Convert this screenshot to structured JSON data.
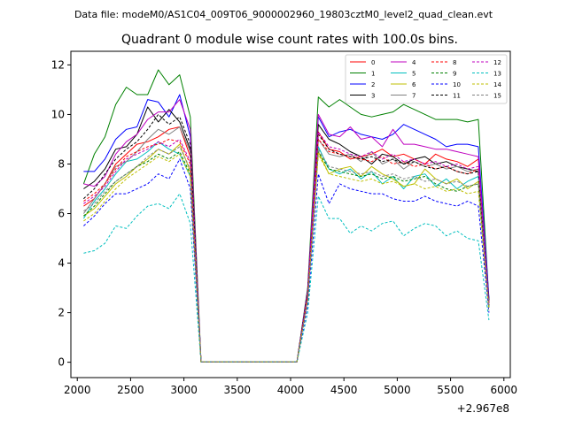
{
  "header": {
    "data_file_caption": "Data file: modeM0/AS1C04_009T06_9000002960_19803cztM0_level2_quad_clean.evt"
  },
  "chart_data": {
    "type": "line",
    "title": "Quadrant 0 module wise count rates with 100.0s bins.",
    "xlabel": "",
    "ylabel": "",
    "x_offset_label": "+2.967e8",
    "xlim": [
      1940,
      6060
    ],
    "ylim": [
      -0.62,
      12.55
    ],
    "x_ticks": [
      2000,
      2500,
      3000,
      3500,
      4000,
      4500,
      5000,
      5500,
      6000
    ],
    "y_ticks": [
      0,
      2,
      4,
      6,
      8,
      10,
      12
    ],
    "legend_position": "top-right",
    "x": [
      2060,
      2160,
      2260,
      2360,
      2460,
      2560,
      2660,
      2760,
      2860,
      2960,
      3060,
      3160,
      3260,
      3360,
      3460,
      3560,
      3660,
      3760,
      3860,
      3960,
      4060,
      4160,
      4260,
      4360,
      4460,
      4560,
      4660,
      4760,
      4860,
      4960,
      5060,
      5160,
      5260,
      5360,
      5460,
      5560,
      5660,
      5760,
      5860
    ],
    "series": [
      {
        "name": "0",
        "color": "#ff0000",
        "dash": "solid",
        "values": [
          6.3,
          6.6,
          7.2,
          8.0,
          8.4,
          8.8,
          8.9,
          9.1,
          9.4,
          9.5,
          8.3,
          0.02,
          0.02,
          0.02,
          0.02,
          0.02,
          0.02,
          0.02,
          0.02,
          0.02,
          0.02,
          2.8,
          9.3,
          8.6,
          8.5,
          8.2,
          8.3,
          8.4,
          8.6,
          8.3,
          8.4,
          8.2,
          8.0,
          8.4,
          8.2,
          8.1,
          7.9,
          8.2,
          2.4
        ]
      },
      {
        "name": "1",
        "color": "#008000",
        "dash": "solid",
        "values": [
          7.2,
          8.4,
          9.1,
          10.4,
          11.1,
          10.8,
          10.8,
          11.8,
          11.2,
          11.6,
          9.9,
          0.02,
          0.02,
          0.02,
          0.02,
          0.02,
          0.02,
          0.02,
          0.02,
          0.02,
          0.02,
          3.0,
          10.7,
          10.3,
          10.6,
          10.3,
          10.0,
          9.9,
          10.0,
          10.1,
          10.4,
          10.2,
          10.0,
          9.8,
          9.8,
          9.8,
          9.7,
          9.8,
          2.5
        ]
      },
      {
        "name": "2",
        "color": "#0000ff",
        "dash": "solid",
        "values": [
          7.7,
          7.7,
          8.2,
          9.0,
          9.4,
          9.5,
          10.6,
          10.5,
          9.9,
          10.8,
          9.1,
          0.02,
          0.02,
          0.02,
          0.02,
          0.02,
          0.02,
          0.02,
          0.02,
          0.02,
          0.02,
          2.9,
          9.9,
          9.1,
          9.3,
          9.4,
          9.2,
          9.1,
          9.0,
          9.2,
          9.6,
          9.4,
          9.2,
          9.0,
          8.7,
          8.8,
          8.8,
          8.7,
          2.6
        ]
      },
      {
        "name": "3",
        "color": "#000000",
        "dash": "solid",
        "values": [
          7.0,
          7.3,
          7.8,
          8.6,
          8.7,
          9.2,
          10.3,
          9.7,
          10.2,
          9.7,
          8.6,
          0.02,
          0.02,
          0.02,
          0.02,
          0.02,
          0.02,
          0.02,
          0.02,
          0.02,
          0.02,
          2.9,
          9.6,
          9.0,
          8.8,
          8.5,
          8.3,
          8.0,
          8.4,
          8.3,
          8.0,
          8.2,
          8.3,
          8.0,
          8.1,
          7.9,
          7.8,
          7.7,
          2.5
        ]
      },
      {
        "name": "4",
        "color": "#bf00bf",
        "dash": "solid",
        "values": [
          7.2,
          7.1,
          7.5,
          8.4,
          8.9,
          9.2,
          9.8,
          10.1,
          10.1,
          10.6,
          9.4,
          0.02,
          0.02,
          0.02,
          0.02,
          0.02,
          0.02,
          0.02,
          0.02,
          0.02,
          0.02,
          2.9,
          10.0,
          9.2,
          9.1,
          9.5,
          9.0,
          9.1,
          8.7,
          9.4,
          8.8,
          8.8,
          8.7,
          8.6,
          8.6,
          8.5,
          8.4,
          8.3,
          2.4
        ]
      },
      {
        "name": "5",
        "color": "#00bfbf",
        "dash": "solid",
        "values": [
          5.8,
          6.5,
          7.0,
          7.6,
          8.1,
          8.2,
          8.5,
          8.9,
          8.6,
          8.4,
          7.5,
          0.02,
          0.02,
          0.02,
          0.02,
          0.02,
          0.02,
          0.02,
          0.02,
          0.02,
          0.02,
          2.6,
          8.7,
          7.8,
          7.6,
          7.8,
          7.4,
          7.7,
          7.2,
          7.5,
          7.0,
          7.5,
          7.6,
          7.1,
          7.4,
          7.0,
          7.3,
          7.5,
          2.2
        ]
      },
      {
        "name": "6",
        "color": "#bfbf00",
        "dash": "solid",
        "values": [
          5.9,
          6.2,
          6.7,
          7.2,
          7.5,
          7.9,
          8.2,
          8.6,
          8.4,
          8.8,
          7.7,
          0.02,
          0.02,
          0.02,
          0.02,
          0.02,
          0.02,
          0.02,
          0.02,
          0.02,
          0.02,
          2.6,
          8.5,
          7.6,
          7.8,
          7.9,
          7.5,
          7.9,
          7.6,
          7.4,
          7.1,
          7.2,
          7.8,
          7.4,
          7.2,
          7.4,
          7.0,
          7.3,
          2.2
        ]
      },
      {
        "name": "7",
        "color": "#808080",
        "dash": "solid",
        "values": [
          6.0,
          6.6,
          7.2,
          7.9,
          8.1,
          8.5,
          9.0,
          9.4,
          9.2,
          9.5,
          8.5,
          0.02,
          0.02,
          0.02,
          0.02,
          0.02,
          0.02,
          0.02,
          0.02,
          0.02,
          0.02,
          2.7,
          9.0,
          8.4,
          8.3,
          8.4,
          8.1,
          8.5,
          8.0,
          8.2,
          7.8,
          8.1,
          7.9,
          8.0,
          7.8,
          7.9,
          7.7,
          7.8,
          2.3
        ]
      },
      {
        "name": "8",
        "color": "#ff0000",
        "dash": "dashed",
        "values": [
          6.5,
          6.8,
          7.2,
          7.8,
          8.3,
          8.5,
          8.7,
          8.8,
          9.0,
          8.9,
          8.0,
          0.02,
          0.02,
          0.02,
          0.02,
          0.02,
          0.02,
          0.02,
          0.02,
          0.02,
          0.02,
          2.7,
          9.0,
          8.5,
          8.4,
          8.3,
          8.2,
          8.1,
          8.3,
          8.0,
          8.1,
          7.9,
          8.0,
          7.8,
          7.9,
          7.7,
          7.6,
          7.8,
          2.3
        ]
      },
      {
        "name": "9",
        "color": "#008000",
        "dash": "dashed",
        "values": [
          5.9,
          6.3,
          6.8,
          7.3,
          7.6,
          7.9,
          8.1,
          8.4,
          8.2,
          8.5,
          7.6,
          0.02,
          0.02,
          0.02,
          0.02,
          0.02,
          0.02,
          0.02,
          0.02,
          0.02,
          0.02,
          2.6,
          8.5,
          7.8,
          7.7,
          7.6,
          7.5,
          7.6,
          7.4,
          7.5,
          7.3,
          7.4,
          7.5,
          7.2,
          7.0,
          6.9,
          7.1,
          7.2,
          2.2
        ]
      },
      {
        "name": "10",
        "color": "#0000ff",
        "dash": "dashed",
        "values": [
          5.5,
          5.9,
          6.4,
          6.8,
          6.8,
          7.0,
          7.2,
          7.6,
          7.4,
          8.2,
          7.0,
          0.02,
          0.02,
          0.02,
          0.02,
          0.02,
          0.02,
          0.02,
          0.02,
          0.02,
          0.02,
          2.3,
          7.6,
          6.4,
          7.2,
          7.0,
          6.9,
          6.8,
          6.8,
          6.6,
          6.5,
          6.5,
          6.7,
          6.5,
          6.4,
          6.3,
          6.5,
          6.3,
          2.0
        ]
      },
      {
        "name": "11",
        "color": "#000000",
        "dash": "dashed",
        "values": [
          6.6,
          7.0,
          7.6,
          8.2,
          8.6,
          8.9,
          9.4,
          10.0,
          9.6,
          9.9,
          8.8,
          0.02,
          0.02,
          0.02,
          0.02,
          0.02,
          0.02,
          0.02,
          0.02,
          0.02,
          0.02,
          2.8,
          9.2,
          8.6,
          8.4,
          8.3,
          8.2,
          8.3,
          8.1,
          8.2,
          8.0,
          8.1,
          7.9,
          7.8,
          7.9,
          7.7,
          7.6,
          7.7,
          2.3
        ]
      },
      {
        "name": "12",
        "color": "#bf00bf",
        "dash": "dashed",
        "values": [
          6.4,
          6.7,
          7.1,
          7.7,
          8.2,
          8.4,
          8.6,
          8.9,
          8.7,
          9.0,
          8.1,
          0.02,
          0.02,
          0.02,
          0.02,
          0.02,
          0.02,
          0.02,
          0.02,
          0.02,
          0.02,
          2.7,
          9.3,
          8.7,
          8.6,
          8.4,
          8.3,
          8.5,
          8.2,
          8.4,
          8.1,
          8.2,
          8.0,
          8.1,
          7.9,
          8.0,
          7.8,
          7.9,
          2.3
        ]
      },
      {
        "name": "13",
        "color": "#00bfbf",
        "dash": "dashed",
        "values": [
          4.4,
          4.5,
          4.8,
          5.5,
          5.4,
          5.9,
          6.3,
          6.4,
          6.2,
          6.8,
          5.6,
          0.02,
          0.02,
          0.02,
          0.02,
          0.02,
          0.02,
          0.02,
          0.02,
          0.02,
          0.02,
          2.0,
          6.7,
          5.8,
          5.8,
          5.2,
          5.5,
          5.3,
          5.6,
          5.7,
          5.1,
          5.4,
          5.6,
          5.5,
          5.1,
          5.3,
          5.0,
          4.9,
          1.7
        ]
      },
      {
        "name": "14",
        "color": "#bfbf00",
        "dash": "dashed",
        "values": [
          5.7,
          6.0,
          6.5,
          7.0,
          7.4,
          7.7,
          8.0,
          8.3,
          8.1,
          8.4,
          7.5,
          0.02,
          0.02,
          0.02,
          0.02,
          0.02,
          0.02,
          0.02,
          0.02,
          0.02,
          0.02,
          2.5,
          8.4,
          7.6,
          7.5,
          7.4,
          7.3,
          7.4,
          7.2,
          7.3,
          7.1,
          7.2,
          7.0,
          7.1,
          6.9,
          7.0,
          6.8,
          6.9,
          2.1
        ]
      },
      {
        "name": "15",
        "color": "#808080",
        "dash": "dashed",
        "values": [
          6.1,
          6.4,
          6.9,
          7.3,
          7.6,
          7.9,
          8.3,
          8.6,
          8.4,
          8.7,
          7.8,
          0.02,
          0.02,
          0.02,
          0.02,
          0.02,
          0.02,
          0.02,
          0.02,
          0.02,
          0.02,
          2.6,
          8.6,
          7.9,
          7.8,
          7.7,
          7.6,
          7.7,
          7.5,
          7.6,
          7.4,
          7.5,
          7.3,
          7.4,
          7.2,
          7.3,
          7.1,
          7.2,
          2.2
        ]
      }
    ]
  }
}
